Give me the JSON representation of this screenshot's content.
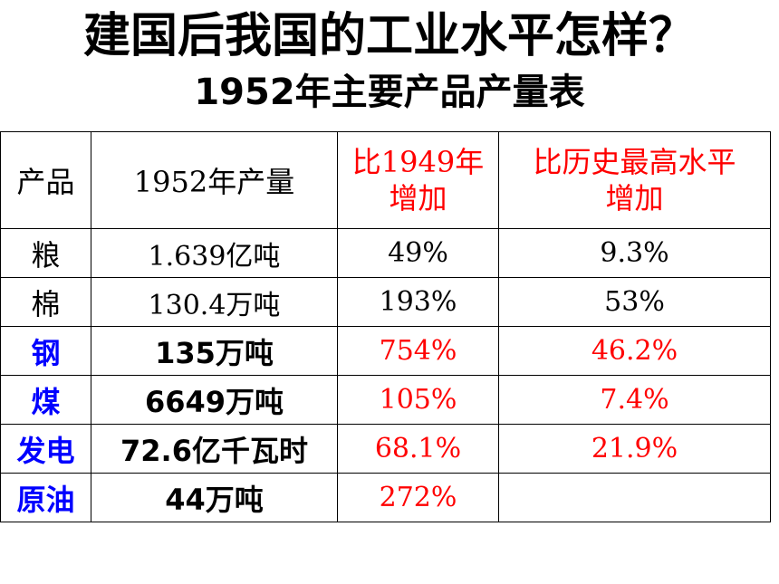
{
  "title": "建国后我国的工业水平怎样？",
  "subtitle": "1952年主要产品产量表",
  "table": {
    "headers": {
      "product": "产品",
      "output_1952": "1952年产量",
      "vs_1949_line1": "比1949年",
      "vs_1949_line2": "增加",
      "vs_peak_line1": "比历史最高水平",
      "vs_peak_line2": "增加"
    },
    "rows": [
      {
        "product": "粮",
        "output": "1.639亿吨",
        "vs_1949": "49%",
        "vs_peak": "9.3%"
      },
      {
        "product": "棉",
        "output": "130.4万吨",
        "vs_1949": "193%",
        "vs_peak": "53%"
      },
      {
        "product": "钢",
        "output": "135万吨",
        "vs_1949": "754%",
        "vs_peak": "46.2%"
      },
      {
        "product": "煤",
        "output": "6649万吨",
        "vs_1949": "105%",
        "vs_peak": "7.4%"
      },
      {
        "product": "发电",
        "output": "72.6亿千瓦时",
        "vs_1949": "68.1%",
        "vs_peak": "21.9%"
      },
      {
        "product": "原油",
        "output": "44万吨",
        "vs_1949": "272%",
        "vs_peak": ""
      }
    ]
  },
  "colors": {
    "highlight_red": "#ff0000",
    "highlight_blue": "#0000ff",
    "text": "#000000"
  }
}
